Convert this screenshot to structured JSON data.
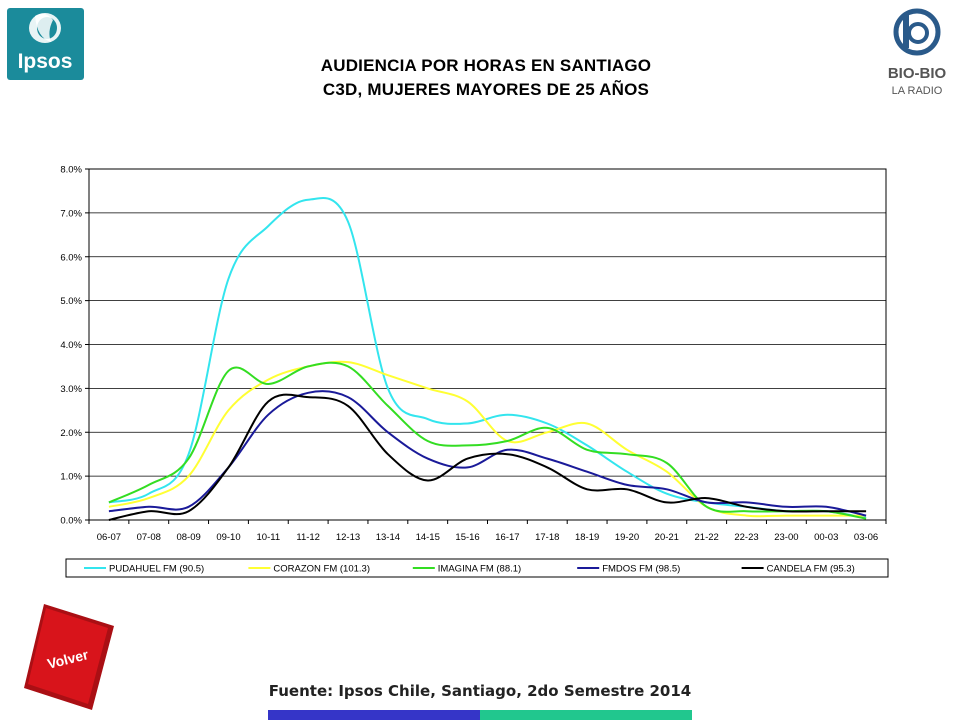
{
  "title_line1": "AUDIENCIA POR HORAS EN SANTIAGO",
  "title_line2": "C3D, MUJERES MAYORES DE 25 AÑOS",
  "source": "Fuente: Ipsos Chile, Santiago, 2do Semestre 2014",
  "logos": {
    "ipsos": "Ipsos",
    "biobio": "BIO-BIO",
    "biobio_sub": "LA RADIO"
  },
  "volver_label": "Volver",
  "colors": {
    "ipsos_bg": "#1b8b9b",
    "biobio": "#2a5a8a",
    "volver": "#d8141b",
    "bar_blue": "#3535c8",
    "bar_teal": "#21c78e"
  },
  "chart_data": {
    "type": "line",
    "title": "",
    "xlabel": "",
    "ylabel": "",
    "ylim": [
      0,
      0.08
    ],
    "yticks": [
      "0.0%",
      "1.0%",
      "2.0%",
      "3.0%",
      "4.0%",
      "5.0%",
      "6.0%",
      "7.0%",
      "8.0%"
    ],
    "grid": true,
    "legend_position": "bottom",
    "categories": [
      "06-07",
      "07-08",
      "08-09",
      "09-10",
      "10-11",
      "11-12",
      "12-13",
      "13-14",
      "14-15",
      "15-16",
      "16-17",
      "17-18",
      "18-19",
      "19-20",
      "20-21",
      "21-22",
      "22-23",
      "23-00",
      "00-03",
      "03-06"
    ],
    "series": [
      {
        "name": "PUDAHUEL FM (90.5)",
        "color": "#33e5ee",
        "values": [
          0.004,
          0.006,
          0.015,
          0.055,
          0.067,
          0.073,
          0.068,
          0.03,
          0.023,
          0.022,
          0.024,
          0.022,
          0.017,
          0.011,
          0.006,
          0.004,
          0.003,
          0.002,
          0.002,
          0.0005
        ]
      },
      {
        "name": "CORAZON FM (101.3)",
        "color": "#ffff33",
        "values": [
          0.003,
          0.005,
          0.01,
          0.025,
          0.032,
          0.035,
          0.036,
          0.033,
          0.03,
          0.027,
          0.018,
          0.02,
          0.022,
          0.016,
          0.011,
          0.003,
          0.001,
          0.001,
          0.001,
          0.001
        ]
      },
      {
        "name": "IMAGINA FM (88.1)",
        "color": "#33dd22",
        "values": [
          0.004,
          0.008,
          0.014,
          0.034,
          0.031,
          0.035,
          0.035,
          0.026,
          0.018,
          0.017,
          0.018,
          0.021,
          0.016,
          0.015,
          0.013,
          0.003,
          0.002,
          0.002,
          0.002,
          0.0003
        ]
      },
      {
        "name": "FMDOS FM (98.5)",
        "color": "#1a1a99",
        "values": [
          0.002,
          0.003,
          0.003,
          0.012,
          0.024,
          0.029,
          0.028,
          0.02,
          0.014,
          0.012,
          0.016,
          0.014,
          0.011,
          0.008,
          0.007,
          0.004,
          0.004,
          0.003,
          0.003,
          0.001
        ]
      },
      {
        "name": "CANDELA FM (95.3)",
        "color": "#000000",
        "values": [
          0.0,
          0.002,
          0.002,
          0.012,
          0.027,
          0.028,
          0.026,
          0.015,
          0.009,
          0.014,
          0.015,
          0.012,
          0.007,
          0.007,
          0.004,
          0.005,
          0.003,
          0.002,
          0.002,
          0.002
        ]
      }
    ]
  }
}
